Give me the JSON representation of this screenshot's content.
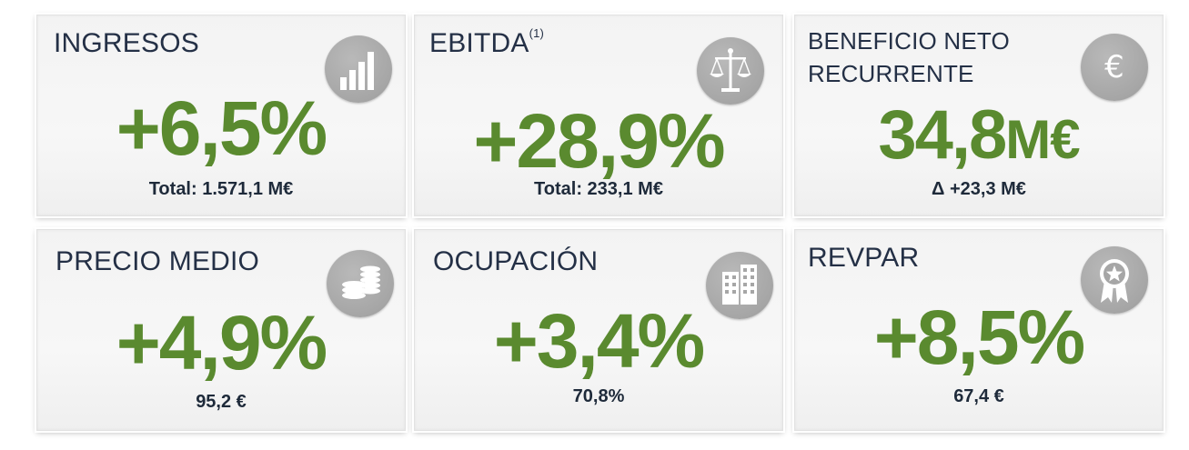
{
  "cards": [
    {
      "title": "INGRESOS",
      "value": "+6,5%",
      "subtitle": "Total: 1.571,1 M€",
      "icon": "bar-chart-icon"
    },
    {
      "title": "EBITDA",
      "title_sup": "(1)",
      "value": "+28,9%",
      "subtitle": "Total: 233,1 M€",
      "icon": "scales-icon"
    },
    {
      "title_line1": "BENEFICIO NETO",
      "title_line2": "RECURRENTE",
      "value_number": "34,8",
      "value_unit": "M€",
      "subtitle": "Δ +23,3 M€",
      "icon": "euro-icon"
    },
    {
      "title": "PRECIO MEDIO",
      "value": "+4,9%",
      "subtitle": "95,2 €",
      "icon": "coins-icon"
    },
    {
      "title": "OCUPACIÓN",
      "value": "+3,4%",
      "subtitle": "70,8%",
      "icon": "buildings-icon"
    },
    {
      "title": "REVPAR",
      "value": "+8,5%",
      "subtitle": "67,4 €",
      "icon": "award-ribbon-icon"
    }
  ],
  "colors": {
    "value_green": "#5a8a2f",
    "title_navy": "#243046",
    "icon_gray": "#a6a6a6"
  }
}
